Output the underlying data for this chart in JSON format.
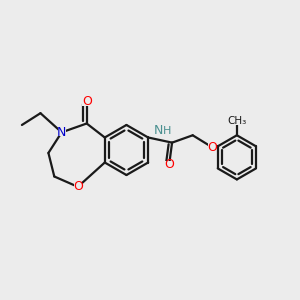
{
  "bg_color": "#ececec",
  "atom_colors": {
    "O": "#ff0000",
    "N": "#0000cc",
    "NH": "#4a9090",
    "C": "#1a1a1a",
    "H": "#1a1a1a"
  },
  "bond_color": "#1a1a1a",
  "bond_width": 1.6,
  "figsize": [
    3.0,
    3.0
  ],
  "dpi": 100
}
